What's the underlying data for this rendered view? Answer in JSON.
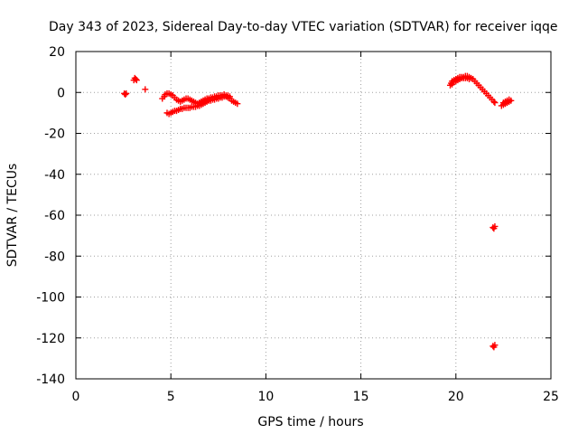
{
  "chart_data": {
    "type": "scatter",
    "title": "Day 343 of 2023, Sidereal Day-to-day VTEC variation (SDTVAR) for receiver iqqe",
    "xlabel": "GPS time / hours",
    "ylabel": "SDTVAR / TECUs",
    "xlim": [
      0,
      25
    ],
    "ylim": [
      -140,
      20
    ],
    "xticks": [
      0,
      5,
      10,
      15,
      20,
      25
    ],
    "yticks": [
      20,
      0,
      -20,
      -40,
      -60,
      -80,
      -100,
      -120,
      -140
    ],
    "grid": true,
    "marker": "+",
    "color": "#ff0000",
    "series": [
      {
        "name": "SDTVAR",
        "points": [
          [
            2.55,
            -0.5
          ],
          [
            2.6,
            -1.0
          ],
          [
            2.65,
            -0.5
          ],
          [
            3.05,
            6.0
          ],
          [
            3.1,
            7.0
          ],
          [
            3.15,
            6.5
          ],
          [
            3.2,
            6.0
          ],
          [
            3.65,
            1.5
          ],
          [
            4.55,
            -3.0
          ],
          [
            4.65,
            -2.0
          ],
          [
            4.7,
            -1.0
          ],
          [
            4.8,
            -0.5
          ],
          [
            4.9,
            -0.5
          ],
          [
            5.0,
            -1.0
          ],
          [
            5.1,
            -1.5
          ],
          [
            5.2,
            -2.5
          ],
          [
            5.3,
            -3.5
          ],
          [
            5.4,
            -4.0
          ],
          [
            5.5,
            -4.5
          ],
          [
            5.6,
            -4.0
          ],
          [
            5.7,
            -3.5
          ],
          [
            5.8,
            -3.0
          ],
          [
            5.9,
            -3.0
          ],
          [
            6.0,
            -3.5
          ],
          [
            6.1,
            -4.0
          ],
          [
            6.2,
            -4.5
          ],
          [
            6.3,
            -5.0
          ],
          [
            6.4,
            -5.5
          ],
          [
            6.5,
            -5.0
          ],
          [
            6.6,
            -4.5
          ],
          [
            4.8,
            -10.0
          ],
          [
            4.9,
            -10.5
          ],
          [
            5.0,
            -10.0
          ],
          [
            5.1,
            -9.5
          ],
          [
            5.2,
            -9.0
          ],
          [
            5.3,
            -9.0
          ],
          [
            5.4,
            -8.5
          ],
          [
            5.5,
            -8.0
          ],
          [
            5.6,
            -8.0
          ],
          [
            5.7,
            -7.5
          ],
          [
            5.8,
            -7.5
          ],
          [
            5.9,
            -7.5
          ],
          [
            6.0,
            -7.5
          ],
          [
            6.1,
            -7.0
          ],
          [
            6.2,
            -7.0
          ],
          [
            6.3,
            -7.0
          ],
          [
            6.4,
            -6.5
          ],
          [
            6.5,
            -6.5
          ],
          [
            6.6,
            -6.0
          ],
          [
            6.7,
            -5.5
          ],
          [
            6.8,
            -5.0
          ],
          [
            6.9,
            -4.5
          ],
          [
            7.0,
            -4.0
          ],
          [
            7.1,
            -4.0
          ],
          [
            7.2,
            -3.5
          ],
          [
            7.3,
            -3.5
          ],
          [
            7.4,
            -3.0
          ],
          [
            7.5,
            -3.0
          ],
          [
            7.6,
            -2.5
          ],
          [
            7.7,
            -2.5
          ],
          [
            7.8,
            -2.0
          ],
          [
            7.9,
            -2.0
          ],
          [
            8.0,
            -2.5
          ],
          [
            8.1,
            -3.0
          ],
          [
            8.2,
            -4.0
          ],
          [
            8.3,
            -4.5
          ],
          [
            8.4,
            -5.0
          ],
          [
            8.5,
            -5.5
          ],
          [
            6.7,
            -4.0
          ],
          [
            6.8,
            -3.5
          ],
          [
            6.9,
            -3.0
          ],
          [
            7.0,
            -3.0
          ],
          [
            7.1,
            -2.5
          ],
          [
            7.2,
            -2.5
          ],
          [
            7.3,
            -2.0
          ],
          [
            7.4,
            -2.0
          ],
          [
            7.5,
            -1.5
          ],
          [
            7.6,
            -1.5
          ],
          [
            7.7,
            -1.5
          ],
          [
            7.8,
            -1.0
          ],
          [
            7.9,
            -1.5
          ],
          [
            8.0,
            -1.5
          ],
          [
            8.1,
            -2.0
          ],
          [
            19.7,
            3.5
          ],
          [
            19.75,
            4.5
          ],
          [
            19.8,
            5.5
          ],
          [
            19.9,
            6.0
          ],
          [
            20.0,
            6.5
          ],
          [
            20.1,
            7.0
          ],
          [
            20.2,
            7.5
          ],
          [
            20.3,
            7.5
          ],
          [
            20.4,
            7.5
          ],
          [
            20.5,
            8.0
          ],
          [
            20.6,
            8.0
          ],
          [
            20.7,
            7.5
          ],
          [
            20.8,
            7.0
          ],
          [
            20.9,
            6.5
          ],
          [
            21.0,
            5.5
          ],
          [
            21.1,
            4.5
          ],
          [
            21.2,
            3.5
          ],
          [
            21.3,
            2.5
          ],
          [
            21.4,
            1.5
          ],
          [
            21.5,
            0.5
          ],
          [
            21.6,
            -0.5
          ],
          [
            21.7,
            -1.5
          ],
          [
            21.8,
            -2.5
          ],
          [
            21.9,
            -3.5
          ],
          [
            22.0,
            -4.5
          ],
          [
            22.05,
            -5.0
          ],
          [
            19.8,
            4.0
          ],
          [
            19.9,
            5.0
          ],
          [
            20.0,
            5.5
          ],
          [
            20.1,
            6.0
          ],
          [
            20.2,
            6.5
          ],
          [
            20.3,
            7.0
          ],
          [
            20.4,
            7.0
          ],
          [
            20.5,
            7.0
          ],
          [
            20.6,
            7.0
          ],
          [
            20.7,
            6.5
          ],
          [
            22.4,
            -6.5
          ],
          [
            22.5,
            -6.0
          ],
          [
            22.6,
            -5.5
          ],
          [
            22.7,
            -5.0
          ],
          [
            22.8,
            -4.5
          ],
          [
            22.9,
            -4.0
          ],
          [
            22.5,
            -5.0
          ],
          [
            22.6,
            -4.5
          ],
          [
            22.7,
            -4.0
          ],
          [
            22.8,
            -3.5
          ],
          [
            21.95,
            -66.0
          ],
          [
            22.0,
            -66.5
          ],
          [
            22.05,
            -65.5
          ],
          [
            21.95,
            -124.0
          ],
          [
            22.0,
            -124.5
          ],
          [
            22.05,
            -123.5
          ]
        ]
      }
    ]
  }
}
